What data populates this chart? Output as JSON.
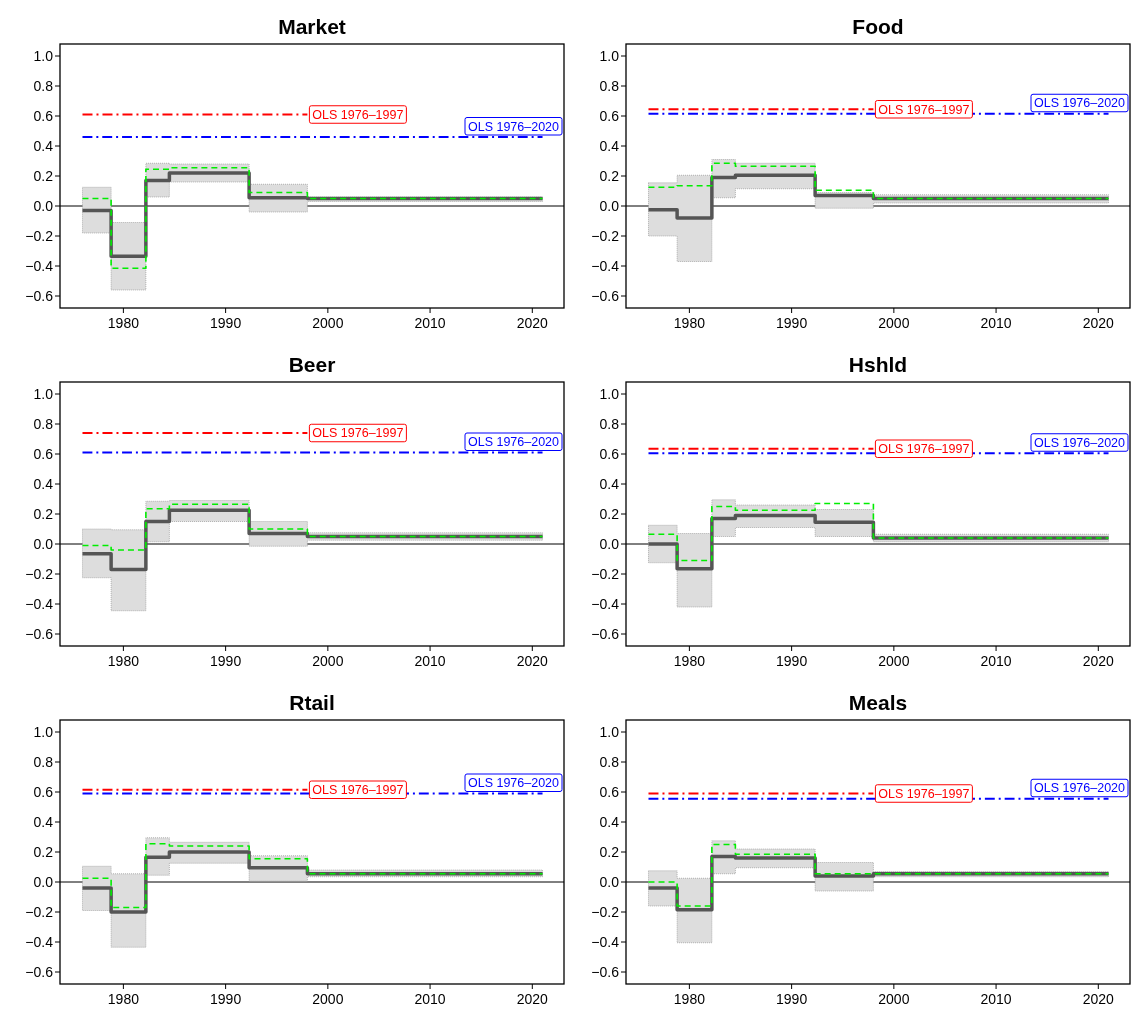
{
  "chart_data": [
    {
      "type": "step",
      "title": "Market",
      "xlim": [
        1973.8,
        2023.1
      ],
      "ylim": [
        -0.68,
        1.08
      ],
      "xticks": [
        1980,
        1990,
        2000,
        2010,
        2020
      ],
      "yticks": [
        {
          "value": -0.6,
          "label": "−0.6"
        },
        {
          "value": -0.4,
          "label": "−0.4"
        },
        {
          "value": -0.2,
          "label": "−0.2"
        },
        {
          "value": 0,
          "label": "0.0"
        },
        0.2,
        0.4,
        0.6,
        0.8,
        {
          "value": 1,
          "label": "1.0"
        }
      ],
      "x": [
        1976,
        1978.8,
        1982.2,
        1984.5,
        1992.3,
        1998,
        2021
      ],
      "ref_lines": [
        {
          "axis": "y",
          "value": 0,
          "color": "#000000"
        }
      ],
      "series": [
        {
          "type": "step",
          "color": "#555555",
          "values": [
            -0.03,
            -0.335,
            0.17,
            0.22,
            0.055,
            0.05,
            0.05
          ],
          "lower": [
            -0.18,
            -0.56,
            0.06,
            0.16,
            -0.04,
            0.03,
            0.03
          ],
          "upper": [
            0.125,
            -0.11,
            0.285,
            0.28,
            0.145,
            0.06,
            0.06
          ]
        },
        {
          "type": "step",
          "color": "#00ee00",
          "line_style": "dashed",
          "values": [
            0.05,
            -0.415,
            0.245,
            0.255,
            0.09,
            0.05,
            0.05
          ]
        },
        {
          "type": "line",
          "name": "OLS 1976–1997",
          "color": "#ff0000",
          "line_style": "dashed",
          "x": [
            1976,
            1998
          ],
          "values": [
            0.61,
            0.61
          ]
        },
        {
          "type": "line",
          "name": "OLS 1976–2020",
          "color": "#0000ff",
          "line_style": "dashed",
          "x": [
            1976,
            2021
          ],
          "values": [
            0.46,
            0.46
          ]
        }
      ]
    },
    {
      "type": "step",
      "title": "Food",
      "xlim": [
        1973.8,
        2023.1
      ],
      "ylim": [
        -0.68,
        1.08
      ],
      "xticks": [
        1980,
        1990,
        2000,
        2010,
        2020
      ],
      "yticks": [
        {
          "value": -0.6,
          "label": "−0.6"
        },
        {
          "value": -0.4,
          "label": "−0.4"
        },
        {
          "value": -0.2,
          "label": "−0.2"
        },
        {
          "value": 0,
          "label": "0.0"
        },
        0.2,
        0.4,
        0.6,
        0.8,
        {
          "value": 1,
          "label": "1.0"
        }
      ],
      "x": [
        1976,
        1978.8,
        1982.2,
        1984.5,
        1992.3,
        1998,
        2021
      ],
      "ref_lines": [
        {
          "axis": "y",
          "value": 0,
          "color": "#000000"
        }
      ],
      "series": [
        {
          "type": "step",
          "color": "#555555",
          "values": [
            -0.025,
            -0.08,
            0.19,
            0.205,
            0.07,
            0.05,
            0.05
          ],
          "lower": [
            -0.2,
            -0.37,
            0.055,
            0.115,
            -0.015,
            0.02,
            0.02
          ],
          "upper": [
            0.155,
            0.205,
            0.31,
            0.285,
            0.09,
            0.075,
            0.075
          ]
        },
        {
          "type": "step",
          "color": "#00ee00",
          "line_style": "dashed",
          "values": [
            0.125,
            0.135,
            0.285,
            0.265,
            0.105,
            0.05,
            0.05
          ]
        },
        {
          "type": "line",
          "name": "OLS 1976–1997",
          "color": "#ff0000",
          "line_style": "dashed",
          "x": [
            1976,
            1998
          ],
          "values": [
            0.645,
            0.645
          ]
        },
        {
          "type": "line",
          "name": "OLS 1976–2020",
          "color": "#0000ff",
          "line_style": "dashed",
          "x": [
            1976,
            2021
          ],
          "values": [
            0.615,
            0.615
          ]
        }
      ]
    },
    {
      "type": "step",
      "title": "Beer",
      "xlim": [
        1973.8,
        2023.1
      ],
      "ylim": [
        -0.68,
        1.08
      ],
      "xticks": [
        1980,
        1990,
        2000,
        2010,
        2020
      ],
      "yticks": [
        {
          "value": -0.6,
          "label": "−0.6"
        },
        {
          "value": -0.4,
          "label": "−0.4"
        },
        {
          "value": -0.2,
          "label": "−0.2"
        },
        {
          "value": 0,
          "label": "0.0"
        },
        0.2,
        0.4,
        0.6,
        0.8,
        {
          "value": 1,
          "label": "1.0"
        }
      ],
      "x": [
        1976,
        1978.8,
        1982.2,
        1984.5,
        1992.3,
        1998,
        2021
      ],
      "ref_lines": [
        {
          "axis": "y",
          "value": 0,
          "color": "#000000"
        }
      ],
      "series": [
        {
          "type": "step",
          "color": "#555555",
          "values": [
            -0.065,
            -0.17,
            0.15,
            0.225,
            0.07,
            0.05,
            0.05
          ],
          "lower": [
            -0.225,
            -0.445,
            0.015,
            0.15,
            -0.015,
            0.025,
            0.025
          ],
          "upper": [
            0.1,
            0.095,
            0.285,
            0.29,
            0.15,
            0.075,
            0.075
          ]
        },
        {
          "type": "step",
          "color": "#00ee00",
          "line_style": "dashed",
          "values": [
            -0.01,
            -0.04,
            0.235,
            0.265,
            0.1,
            0.05,
            0.05
          ]
        },
        {
          "type": "line",
          "name": "OLS 1976–1997",
          "color": "#ff0000",
          "line_style": "dashed",
          "x": [
            1976,
            1998
          ],
          "values": [
            0.74,
            0.74
          ]
        },
        {
          "type": "line",
          "name": "OLS 1976–2020",
          "color": "#0000ff",
          "line_style": "dashed",
          "x": [
            1976,
            2021
          ],
          "values": [
            0.61,
            0.61
          ]
        }
      ]
    },
    {
      "type": "step",
      "title": "Hshld",
      "xlim": [
        1973.8,
        2023.1
      ],
      "ylim": [
        -0.68,
        1.08
      ],
      "xticks": [
        1980,
        1990,
        2000,
        2010,
        2020
      ],
      "yticks": [
        {
          "value": -0.6,
          "label": "−0.6"
        },
        {
          "value": -0.4,
          "label": "−0.4"
        },
        {
          "value": -0.2,
          "label": "−0.2"
        },
        {
          "value": 0,
          "label": "0.0"
        },
        0.2,
        0.4,
        0.6,
        0.8,
        {
          "value": 1,
          "label": "1.0"
        }
      ],
      "x": [
        1976,
        1978.8,
        1982.2,
        1984.5,
        1992.3,
        1998,
        2021
      ],
      "ref_lines": [
        {
          "axis": "y",
          "value": 0,
          "color": "#000000"
        }
      ],
      "series": [
        {
          "type": "step",
          "color": "#555555",
          "values": [
            0,
            -0.165,
            0.17,
            0.19,
            0.145,
            0.04,
            0.04
          ],
          "lower": [
            -0.125,
            -0.42,
            0.05,
            0.11,
            0.05,
            0.015,
            0.015
          ],
          "upper": [
            0.125,
            0.07,
            0.295,
            0.26,
            0.23,
            0.065,
            0.065
          ]
        },
        {
          "type": "step",
          "color": "#00ee00",
          "line_style": "dashed",
          "values": [
            0.065,
            -0.11,
            0.25,
            0.225,
            0.27,
            0.04,
            0.04
          ]
        },
        {
          "type": "line",
          "name": "OLS 1976–1997",
          "color": "#ff0000",
          "line_style": "dashed",
          "x": [
            1976,
            1998
          ],
          "values": [
            0.635,
            0.635
          ]
        },
        {
          "type": "line",
          "name": "OLS 1976–2020",
          "color": "#0000ff",
          "line_style": "dashed",
          "x": [
            1976,
            2021
          ],
          "values": [
            0.605,
            0.605
          ]
        }
      ]
    },
    {
      "type": "step",
      "title": "Rtail",
      "xlim": [
        1973.8,
        2023.1
      ],
      "ylim": [
        -0.68,
        1.08
      ],
      "xticks": [
        1980,
        1990,
        2000,
        2010,
        2020
      ],
      "yticks": [
        {
          "value": -0.6,
          "label": "−0.6"
        },
        {
          "value": -0.4,
          "label": "−0.4"
        },
        {
          "value": -0.2,
          "label": "−0.2"
        },
        {
          "value": 0,
          "label": "0.0"
        },
        0.2,
        0.4,
        0.6,
        0.8,
        {
          "value": 1,
          "label": "1.0"
        }
      ],
      "x": [
        1976,
        1978.8,
        1982.2,
        1984.5,
        1992.3,
        1998,
        2021
      ],
      "ref_lines": [
        {
          "axis": "y",
          "value": 0,
          "color": "#000000"
        }
      ],
      "series": [
        {
          "type": "step",
          "color": "#555555",
          "values": [
            -0.04,
            -0.2,
            0.165,
            0.2,
            0.095,
            0.055,
            0.055
          ],
          "lower": [
            -0.19,
            -0.435,
            0.045,
            0.125,
            0.005,
            0.035,
            0.035
          ],
          "upper": [
            0.105,
            0.055,
            0.295,
            0.265,
            0.175,
            0.08,
            0.08
          ]
        },
        {
          "type": "step",
          "color": "#00ee00",
          "line_style": "dashed",
          "values": [
            0.025,
            -0.17,
            0.255,
            0.24,
            0.155,
            0.055,
            0.055
          ]
        },
        {
          "type": "line",
          "name": "OLS 1976–1997",
          "color": "#ff0000",
          "line_style": "dashed",
          "x": [
            1976,
            1998
          ],
          "values": [
            0.615,
            0.615
          ]
        },
        {
          "type": "line",
          "name": "OLS 1976–2020",
          "color": "#0000ff",
          "line_style": "dashed",
          "x": [
            1976,
            2021
          ],
          "values": [
            0.59,
            0.59
          ]
        }
      ]
    },
    {
      "type": "step",
      "title": "Meals",
      "xlim": [
        1973.8,
        2023.1
      ],
      "ylim": [
        -0.68,
        1.08
      ],
      "xticks": [
        1980,
        1990,
        2000,
        2010,
        2020
      ],
      "yticks": [
        {
          "value": -0.6,
          "label": "−0.6"
        },
        {
          "value": -0.4,
          "label": "−0.4"
        },
        {
          "value": -0.2,
          "label": "−0.2"
        },
        {
          "value": 0,
          "label": "0.0"
        },
        0.2,
        0.4,
        0.6,
        0.8,
        {
          "value": 1,
          "label": "1.0"
        }
      ],
      "x": [
        1976,
        1978.8,
        1982.2,
        1984.5,
        1992.3,
        1998,
        2021
      ],
      "ref_lines": [
        {
          "axis": "y",
          "value": 0,
          "color": "#000000"
        }
      ],
      "series": [
        {
          "type": "step",
          "color": "#555555",
          "values": [
            -0.04,
            -0.185,
            0.17,
            0.16,
            0.04,
            0.055,
            0.055
          ],
          "lower": [
            -0.16,
            -0.405,
            0.055,
            0.095,
            -0.06,
            0.035,
            0.035
          ],
          "upper": [
            0.075,
            0.025,
            0.275,
            0.22,
            0.13,
            0.07,
            0.07
          ]
        },
        {
          "type": "step",
          "color": "#00ee00",
          "line_style": "dashed",
          "values": [
            0,
            -0.16,
            0.25,
            0.185,
            0.055,
            0.055,
            0.055
          ]
        },
        {
          "type": "line",
          "name": "OLS 1976–1997",
          "color": "#ff0000",
          "line_style": "dashed",
          "x": [
            1976,
            1998
          ],
          "values": [
            0.59,
            0.59
          ]
        },
        {
          "type": "line",
          "name": "OLS 1976–2020",
          "color": "#0000ff",
          "line_style": "dashed",
          "x": [
            1976,
            2021
          ],
          "values": [
            0.555,
            0.555
          ]
        }
      ]
    }
  ]
}
